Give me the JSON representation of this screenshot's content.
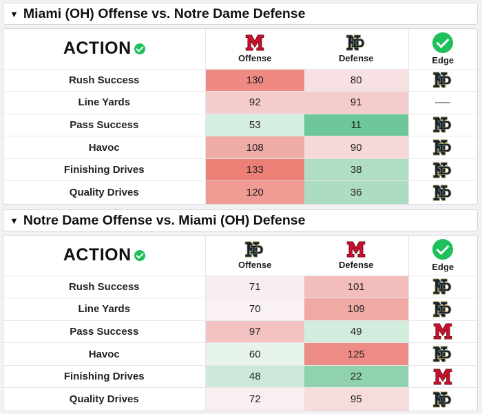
{
  "colors": {
    "miami_red": "#c8102e",
    "nd_navy": "#0c2340",
    "nd_gold": "#ae9142",
    "edge_check": "#1fbf5a"
  },
  "sections": [
    {
      "title": "Miami (OH) Offense vs. Notre Dame Defense",
      "brand": "ACTION",
      "columns": [
        {
          "label": "Offense",
          "logo": "miami-logo"
        },
        {
          "label": "Defense",
          "logo": "nd-logo"
        },
        {
          "label": "Edge",
          "logo": "check-icon"
        }
      ],
      "rows": [
        {
          "label": "Rush Success",
          "offense": "130",
          "defense": "80",
          "edge": "nd-logo",
          "offense_bg": "#ee8a82",
          "defense_bg": "#f7e1e3"
        },
        {
          "label": "Line Yards",
          "offense": "92",
          "defense": "91",
          "edge": "dash",
          "offense_bg": "#f4cccc",
          "defense_bg": "#f4cccc"
        },
        {
          "label": "Pass Success",
          "offense": "53",
          "defense": "11",
          "edge": "nd-logo",
          "offense_bg": "#d6eee0",
          "defense_bg": "#6dc798"
        },
        {
          "label": "Havoc",
          "offense": "108",
          "defense": "90",
          "edge": "nd-logo",
          "offense_bg": "#efaca6",
          "defense_bg": "#f6d8d8"
        },
        {
          "label": "Finishing Drives",
          "offense": "133",
          "defense": "38",
          "edge": "nd-logo",
          "offense_bg": "#ec8077",
          "defense_bg": "#b0dec5"
        },
        {
          "label": "Quality Drives",
          "offense": "120",
          "defense": "36",
          "edge": "nd-logo",
          "offense_bg": "#ef9a92",
          "defense_bg": "#acdcc2"
        }
      ]
    },
    {
      "title": "Notre Dame Offense vs. Miami (OH) Defense",
      "brand": "ACTION",
      "columns": [
        {
          "label": "Offense",
          "logo": "nd-logo"
        },
        {
          "label": "Defense",
          "logo": "miami-logo"
        },
        {
          "label": "Edge",
          "logo": "check-icon"
        }
      ],
      "rows": [
        {
          "label": "Rush Success",
          "offense": "71",
          "defense": "101",
          "edge": "nd-logo",
          "offense_bg": "#f8eef0",
          "defense_bg": "#f2bdba"
        },
        {
          "label": "Line Yards",
          "offense": "70",
          "defense": "109",
          "edge": "nd-logo",
          "offense_bg": "#f9f1f2",
          "defense_bg": "#f0aaa4"
        },
        {
          "label": "Pass Success",
          "offense": "97",
          "defense": "49",
          "edge": "miami-logo",
          "offense_bg": "#f3c3c1",
          "defense_bg": "#d2ecdd"
        },
        {
          "label": "Havoc",
          "offense": "60",
          "defense": "125",
          "edge": "nd-logo",
          "offense_bg": "#e6f4ec",
          "defense_bg": "#ed8c84"
        },
        {
          "label": "Finishing Drives",
          "offense": "48",
          "defense": "22",
          "edge": "miami-logo",
          "offense_bg": "#cde9d9",
          "defense_bg": "#8fd2ad"
        },
        {
          "label": "Quality Drives",
          "offense": "72",
          "defense": "95",
          "edge": "nd-logo",
          "offense_bg": "#f8eff1",
          "defense_bg": "#f6dcdc"
        }
      ]
    }
  ]
}
